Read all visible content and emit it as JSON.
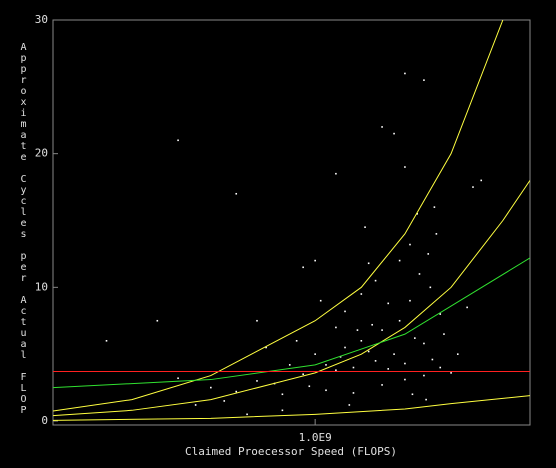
{
  "chart_data": {
    "type": "scatter",
    "x_label": "Claimed Proecessor Speed (FLOPS)",
    "y_label": "Approximate Cycles per Actual FLOP",
    "xscale": "log",
    "xlim": [
      100000000,
      6600000000
    ],
    "xticks": [
      {
        "value": 1000000000,
        "label": "1.0E9"
      }
    ],
    "ylim": [
      0,
      30
    ],
    "yticks": [
      0,
      10,
      20,
      30
    ],
    "series": [
      {
        "type": "scatter",
        "color": "#ffffff",
        "x": [
          1000000000.0,
          1100000000.0,
          1200000000.0,
          1300000000.0,
          1400000000.0,
          1500000000.0,
          1600000000.0,
          1700000000.0,
          1800000000.0,
          1900000000.0,
          2000000000.0,
          2100000000.0,
          2200000000.0,
          2300000000.0,
          2400000000.0,
          2500000000.0,
          2600000000.0,
          2700000000.0,
          2800000000.0,
          2900000000.0,
          3000000000.0,
          1500000000.0,
          1700000000.0,
          1900000000.0,
          2100000000.0,
          2300000000.0,
          1600000000.0,
          1300000000.0,
          1200000000.0,
          1050000000.0,
          900000000.0,
          800000000.0,
          700000000.0,
          600000000.0,
          500000000.0,
          450000000.0,
          400000000.0,
          350000000.0,
          300000000.0,
          650000000.0,
          750000000.0,
          850000000.0,
          950000000.0,
          1100000000.0,
          1400000000.0,
          1800000000.0,
          2200000000.0,
          2600000000.0,
          3000000000.0,
          3100000000.0,
          2750000000.0,
          2450000000.0,
          2850000000.0,
          2200000000.0,
          2000000000.0,
          1800000000.0,
          4000000000.0,
          4300000000.0,
          1200000000.0,
          1000000000.0,
          900000000.0,
          600000000.0,
          500000000.0,
          300000000.0,
          250000000.0,
          160000000.0,
          2200000000.0,
          2600000000.0,
          1550000000.0,
          2350000000.0,
          2650000000.0,
          1350000000.0,
          750000000.0,
          550000000.0,
          3800000000.0,
          3500000000.0,
          3300000000.0,
          1450000000.0,
          1650000000.0,
          1250000000.0
        ],
        "values": [
          5.0,
          4.2,
          3.8,
          5.5,
          4.0,
          6.0,
          5.2,
          4.5,
          6.8,
          3.9,
          5.0,
          7.5,
          4.3,
          9.0,
          6.2,
          11.0,
          5.8,
          12.5,
          4.6,
          14.0,
          8.0,
          9.5,
          10.5,
          8.8,
          12.0,
          13.2,
          11.8,
          8.2,
          7.0,
          9.0,
          3.5,
          4.2,
          2.8,
          3.0,
          2.2,
          1.5,
          2.5,
          1.2,
          3.2,
          5.5,
          2.0,
          6.0,
          2.6,
          2.3,
          2.1,
          2.7,
          3.1,
          3.4,
          4.0,
          6.5,
          10.0,
          15.5,
          16.0,
          19.0,
          21.5,
          22.0,
          17.5,
          18.0,
          18.5,
          12.0,
          11.5,
          7.5,
          17.0,
          21.0,
          7.5,
          6.0,
          26.0,
          25.5,
          14.5,
          2.0,
          1.6,
          1.2,
          0.8,
          0.5,
          8.5,
          5.0,
          3.6,
          6.8,
          7.2,
          4.8
        ]
      },
      {
        "type": "line",
        "color": "#ffff40",
        "x": [
          100000000.0,
          200000000.0,
          400000000.0,
          1000000000.0,
          1500000000.0,
          2200000000.0,
          3300000000.0,
          5200000000.0
        ],
        "values": [
          0.75,
          1.6,
          3.4,
          7.5,
          10,
          14,
          20,
          30
        ]
      },
      {
        "type": "line",
        "color": "#ffff40",
        "x": [
          100000000.0,
          200000000.0,
          400000000.0,
          1000000000.0,
          1500000000.0,
          2200000000.0,
          3300000000.0,
          5200000000.0,
          6600000000.0
        ],
        "values": [
          0.4,
          0.8,
          1.6,
          3.6,
          5,
          7,
          10,
          15,
          18
        ]
      },
      {
        "type": "line",
        "color": "#ffff40",
        "x": [
          100000000.0,
          400000000.0,
          1000000000.0,
          2200000000.0,
          3300000000.0,
          6600000000.0
        ],
        "values": [
          0.05,
          0.2,
          0.5,
          0.9,
          1.3,
          1.9
        ]
      },
      {
        "type": "line",
        "color": "#30e030",
        "x": [
          100000000.0,
          400000000.0,
          1000000000.0,
          2200000000.0,
          3300000000.0,
          6600000000.0
        ],
        "values": [
          2.5,
          3.1,
          4.2,
          6.5,
          8.6,
          12.2
        ]
      },
      {
        "type": "line",
        "color": "#ff2020",
        "x": [
          100000000.0,
          6600000000.0
        ],
        "values": [
          3.7,
          3.7
        ]
      }
    ]
  }
}
